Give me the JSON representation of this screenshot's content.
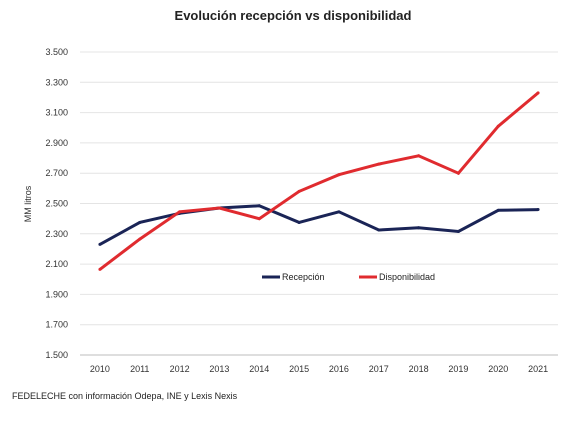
{
  "source_note": "FEDELECHE con información Odepa, INE y Lexis Nexis",
  "chart_data": {
    "type": "line",
    "title": "Evolución recepción vs disponibilidad",
    "xlabel": "",
    "ylabel": "MM litros",
    "x": [
      "2010",
      "2011",
      "2012",
      "2013",
      "2014",
      "2015",
      "2016",
      "2017",
      "2018",
      "2019",
      "2020",
      "2021"
    ],
    "ylim": [
      1500,
      3500
    ],
    "yticks": [
      1500,
      1700,
      1900,
      2100,
      2300,
      2500,
      2700,
      2900,
      3100,
      3300,
      3500
    ],
    "ytick_labels": [
      "1.500",
      "1.700",
      "1.900",
      "2.100",
      "2.300",
      "2.500",
      "2.700",
      "2.900",
      "3.100",
      "3.300",
      "3.500"
    ],
    "grid": true,
    "legend_position": "center",
    "series": [
      {
        "name": "Recepción",
        "color": "#1a2456",
        "values": [
          2230,
          2375,
          2435,
          2470,
          2485,
          2375,
          2445,
          2325,
          2340,
          2315,
          2455,
          2460
        ]
      },
      {
        "name": "Disponibilidad",
        "color": "#e02b2f",
        "values": [
          2065,
          2265,
          2445,
          2470,
          2400,
          2580,
          2690,
          2760,
          2815,
          2700,
          3010,
          3230
        ]
      }
    ]
  }
}
